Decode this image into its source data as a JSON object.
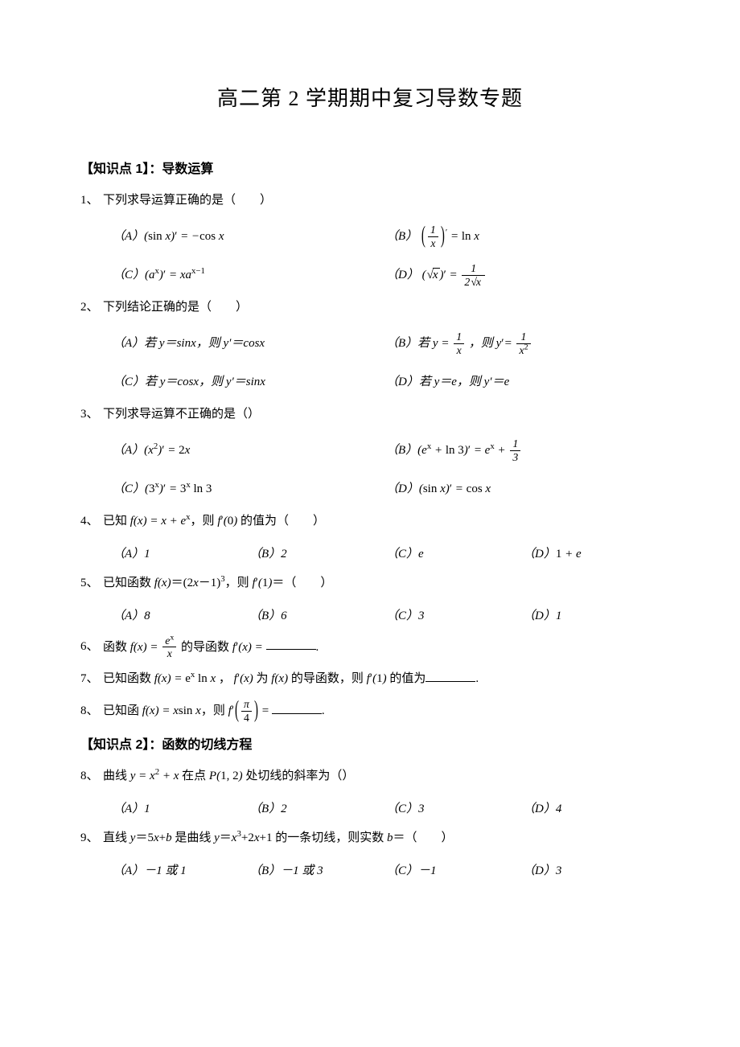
{
  "title": "高二第 2 学期期中复习导数专题",
  "section1": {
    "header": "【知识点 1】：导数运算"
  },
  "section2": {
    "header": "【知识点 2】：函数的切线方程"
  },
  "q1": {
    "num": "1、",
    "stem": "下列求导运算正确的是（　　）",
    "A": "（A）(sin x)′ = −cos x",
    "B_pre": "（B）",
    "B_post": " = ln x",
    "C": "（C）(aˣ)′ = xa^{x−1}",
    "D_pre": "（D）(√x)′ = "
  },
  "q2": {
    "num": "2、",
    "stem": "下列结论正确的是（　　）",
    "A": "（A）若 y＝sinx，则 y′＝cosx",
    "B_pre": "（B）若 ",
    "B_mid": " ，则 y′=",
    "C": "（C）若 y＝cosx，则 y′＝sinx",
    "D": "（D）若 y＝e，则 y′＝e"
  },
  "q3": {
    "num": "3、",
    "stem": "下列求导运算不正确的是（）",
    "A": "（A）(x²)′ = 2x",
    "B_pre": "（B）(eˣ + ln 3)′ = eˣ + ",
    "C": "（C）(3ˣ)′ = 3ˣ ln 3",
    "D": "（D）(sin x)′ = cos x"
  },
  "q4": {
    "num": "4、",
    "stem_pre": "已知 ",
    "stem_mid": "，则 ",
    "stem_post": " 的值为（　　）",
    "A": "（A）1",
    "B": "（B）2",
    "C": "（C）e",
    "D": "（D）1 + e"
  },
  "q5": {
    "num": "5、",
    "stem": "已知函数 f(x)＝(2x－1)³，则 f′(1)＝（　　）",
    "A": "（A）8",
    "B": "（B）6",
    "C": "（C）3",
    "D": "（D）1"
  },
  "q6": {
    "num": "6、",
    "stem_pre": "函数 ",
    "stem_mid": " 的导函数 f ′(x) = ",
    "tail": "."
  },
  "q7": {
    "num": "7、",
    "stem": "已知函数 f(x) = eˣ ln x ， f ′(x) 为 f(x) 的导函数，则 f ′(1) 的值为",
    "tail": "."
  },
  "q8a": {
    "num": "8、",
    "stem_pre": "已知函 ",
    "stem_mid": "，则 ",
    "stem_post": " = ",
    "tail": "."
  },
  "q8b": {
    "num": "8、",
    "stem": "曲线 y = x² + x 在点 P(1, 2) 处切线的斜率为（）",
    "A": "（A）1",
    "B": "（B）2",
    "C": "（C）3",
    "D": "（D）4"
  },
  "q9": {
    "num": "9、",
    "stem": "直线 y＝5x+b 是曲线 y＝x³+2x+1 的一条切线，则实数 b＝（　　）",
    "A": "（A）－1 或 1",
    "B": "（B）－1 或 3",
    "C": "（C）－1",
    "D": "（D）3"
  }
}
